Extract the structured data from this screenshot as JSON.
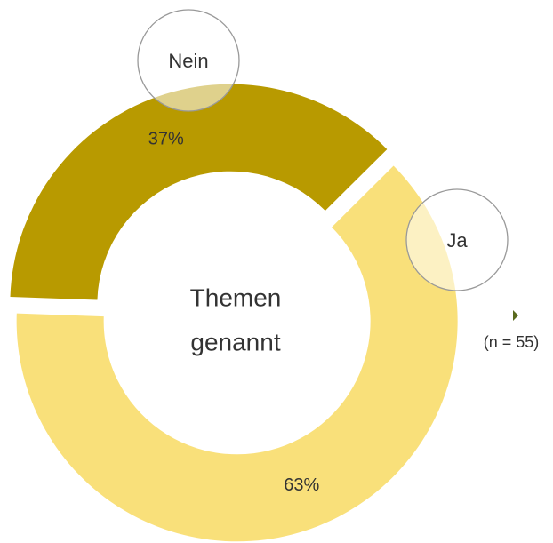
{
  "chart_data": {
    "type": "donut",
    "categories": [
      "Nein",
      "Ja"
    ],
    "values": [
      37,
      63
    ],
    "value_labels": [
      "37%",
      "63%"
    ],
    "colors": [
      "#b89a00",
      "#f9e07a"
    ],
    "center_label": [
      "Themen",
      "genannt"
    ],
    "note": "(n = 55)"
  }
}
